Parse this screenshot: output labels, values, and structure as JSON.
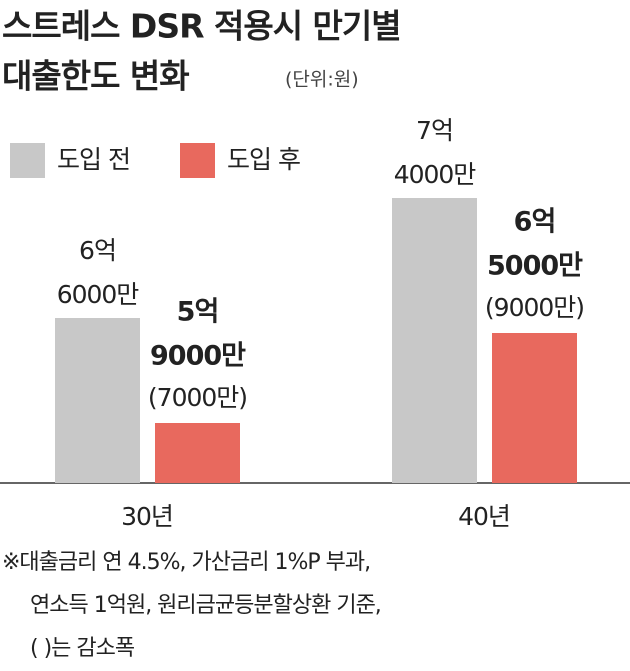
{
  "chart_data": {
    "type": "bar",
    "title": [
      "스트레스 DSR 적용시 만기별",
      "대출한도 변화"
    ],
    "subtitle": "(단위:원)",
    "categories": [
      "30년",
      "40년"
    ],
    "series": [
      {
        "name": "도입 전",
        "color": "#c8c8c8",
        "values": [
          660000000,
          740000000
        ],
        "value_labels": [
          [
            "6억",
            "6000만"
          ],
          [
            "7억",
            "4000만"
          ]
        ]
      },
      {
        "name": "도입 후",
        "color": "#e8695e",
        "values": [
          590000000,
          650000000
        ],
        "value_labels": [
          [
            "5억",
            "9000만"
          ],
          [
            "6억",
            "5000만"
          ]
        ],
        "reduction_labels": [
          "(7000만)",
          "(9000만)"
        ]
      }
    ],
    "ylim": [
      550000000,
      760000000
    ],
    "notes": [
      "※대출금리 연 4.5%, 가산금리 1%P 부과,",
      "연소득 1억원, 원리금균등분할상환 기준,",
      "(    )는 감소폭"
    ]
  }
}
